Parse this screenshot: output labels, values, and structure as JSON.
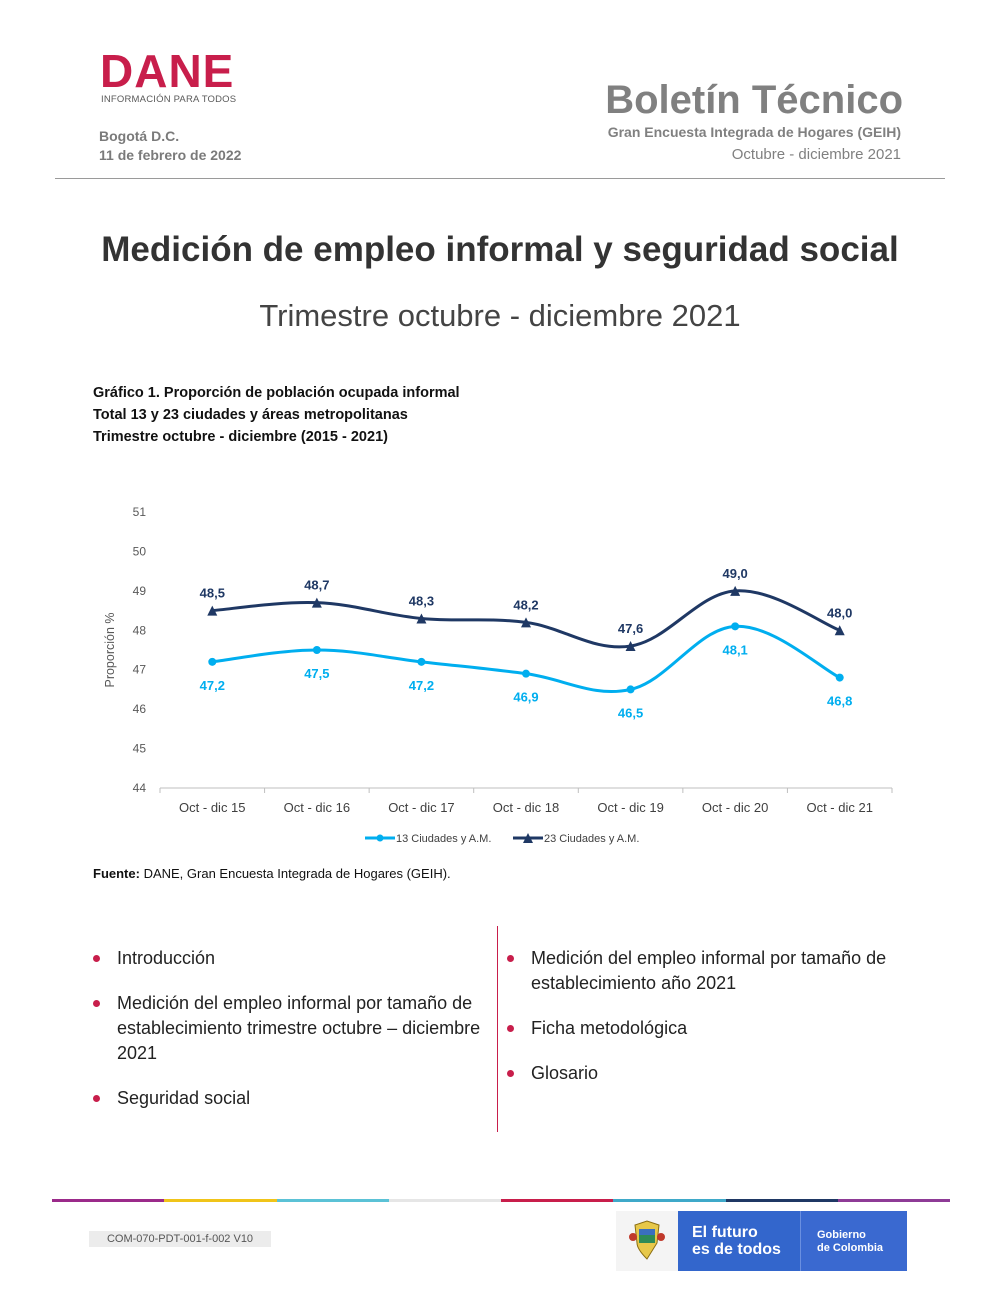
{
  "header": {
    "logo": "DANE",
    "logo_tagline": "INFORMACIÓN PARA TODOS",
    "city": "Bogotá D.C.",
    "date": "11 de febrero de 2022",
    "bulletin_title": "Boletín Técnico",
    "bulletin_subtitle": "Gran Encuesta Integrada de Hogares (GEIH)",
    "bulletin_period": "Octubre - diciembre 2021"
  },
  "main": {
    "title": "Medición de empleo informal y seguridad social",
    "subtitle": "Trimestre octubre - diciembre 2021"
  },
  "chart_caption": {
    "line1": "Gráfico 1. Proporción de población ocupada informal",
    "line2": "Total 13 y 23 ciudades y áreas metropolitanas",
    "line3": "Trimestre octubre - diciembre (2015 - 2021)"
  },
  "chart_data": {
    "type": "line",
    "categories": [
      "Oct - dic 15",
      "Oct - dic 16",
      "Oct - dic 17",
      "Oct - dic 18",
      "Oct - dic 19",
      "Oct - dic 20",
      "Oct - dic 21"
    ],
    "series": [
      {
        "name": "13 Ciudades y A.M.",
        "values": [
          47.2,
          47.5,
          47.2,
          46.9,
          46.5,
          48.1,
          46.8
        ],
        "labels": [
          "47,2",
          "47,5",
          "47,2",
          "46,9",
          "46,5",
          "48,1",
          "46,8"
        ],
        "color": "#00aeef",
        "marker": "circle"
      },
      {
        "name": "23 Ciudades y A.M.",
        "values": [
          48.5,
          48.7,
          48.3,
          48.2,
          47.6,
          49.0,
          48.0
        ],
        "labels": [
          "48,5",
          "48,7",
          "48,3",
          "48,2",
          "47,6",
          "49,0",
          "48,0"
        ],
        "color": "#1f3864",
        "marker": "triangle"
      }
    ],
    "ylabel": "Proporción %",
    "xlabel": "",
    "ylim": [
      44,
      51
    ],
    "yticks": [
      "44",
      "45",
      "46",
      "47",
      "48",
      "49",
      "50",
      "51"
    ],
    "legend_position": "bottom",
    "grid": false
  },
  "source": {
    "label": "Fuente:",
    "text": " DANE, Gran Encuesta Integrada de Hogares (GEIH)."
  },
  "contents_left": [
    "Introducción",
    "Medición del empleo informal por tamaño de establecimiento trimestre octubre – diciembre 2021",
    "Seguridad social"
  ],
  "contents_right": [
    "Medición del empleo informal por tamaño de establecimiento año 2021",
    "Ficha metodológica",
    "Glosario"
  ],
  "footer": {
    "doc_code": "COM-070-PDT-001-f-002 V10",
    "gov_slogan_line1": "El futuro",
    "gov_slogan_line2": "es de todos",
    "gov_name_line1": "Gobierno",
    "gov_name_line2": "de Colombia",
    "bar_colors": [
      "#9b2a8a",
      "#f0c419",
      "#5bc2d6",
      "#e6e6e6",
      "#c81e4b",
      "#3fa9c9",
      "#1f3864",
      "#8e3b96"
    ]
  }
}
